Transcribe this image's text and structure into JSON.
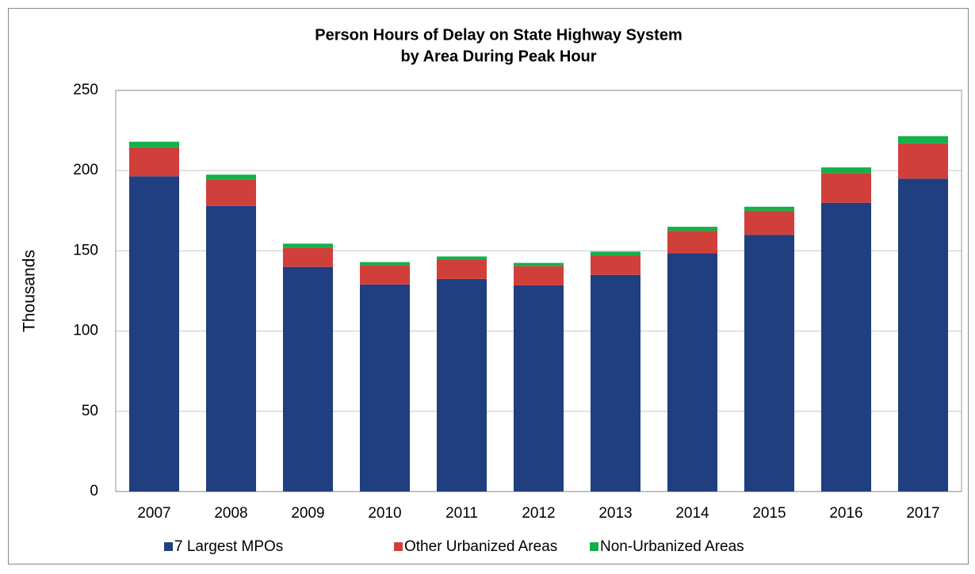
{
  "chart_data": {
    "type": "stacked_bar",
    "title": [
      "Person Hours of Delay on State Highway System",
      "by Area During Peak Hour"
    ],
    "ylabel": "Thousands",
    "categories": [
      "2007",
      "2008",
      "2009",
      "2010",
      "2011",
      "2012",
      "2013",
      "2014",
      "2015",
      "2016",
      "2017"
    ],
    "series": [
      {
        "name": "7 Largest MPOs",
        "color": "#203f80",
        "values": [
          196.5,
          178,
          140,
          129,
          132.5,
          128.5,
          135,
          148.5,
          160,
          180,
          195
        ]
      },
      {
        "name": "Other Urbanized Areas",
        "color": "#d13f3b",
        "values": [
          18,
          16.5,
          12,
          12,
          12,
          12,
          12,
          14,
          15,
          18.5,
          22
        ]
      },
      {
        "name": "Non-Urbanized Areas",
        "color": "#14b04a",
        "values": [
          3.5,
          3,
          2.5,
          2,
          2,
          2,
          2.5,
          2.5,
          2.5,
          3.5,
          4.5
        ]
      }
    ],
    "ylim": [
      0,
      250
    ],
    "yticks": [
      0,
      50,
      100,
      150,
      200,
      250
    ],
    "grid": true,
    "legend": "bottom"
  }
}
